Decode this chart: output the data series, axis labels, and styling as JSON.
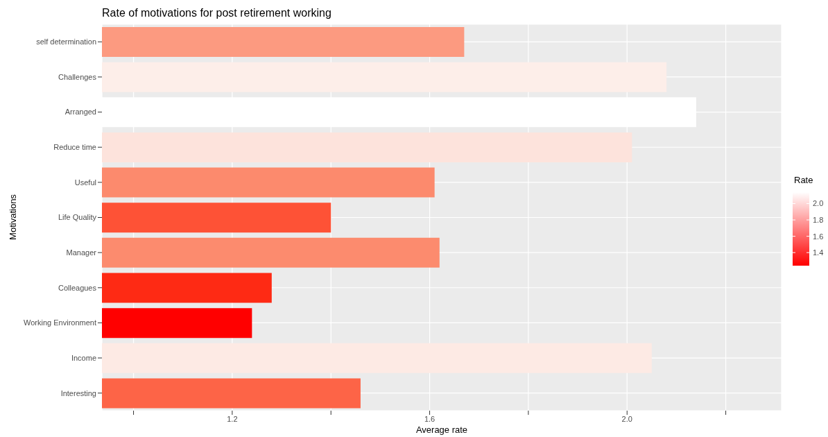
{
  "chart_data": {
    "type": "bar",
    "orientation": "horizontal",
    "title": "Rate of motivations for post retirement working",
    "xlabel": "Average rate",
    "ylabel": "Motivations",
    "clabel": "Rate",
    "categories": [
      "self determination",
      "Challenges",
      "Arranged",
      "Reduce time",
      "Useful",
      "Life Quality",
      "Manager",
      "Colleagues",
      "Working Environment",
      "Income",
      "Interesting"
    ],
    "values": [
      1.67,
      2.08,
      2.14,
      2.01,
      1.61,
      1.4,
      1.62,
      1.28,
      1.24,
      2.05,
      1.46
    ],
    "colors": [
      "#fc9a80",
      "#fdeee9",
      "#ffffff",
      "#fde3dc",
      "#fc8a6d",
      "#fe5236",
      "#fc8b6e",
      "#fe2a14",
      "#ff0000",
      "#fdeae4",
      "#fd6447"
    ],
    "xlim": [
      0.936,
      2.313
    ],
    "xticks": [
      {
        "value": 1.0,
        "label": null
      },
      {
        "value": 1.2,
        "label": "1.2"
      },
      {
        "value": 1.4,
        "label": null
      },
      {
        "value": 1.6,
        "label": "1.6"
      },
      {
        "value": 1.8,
        "label": null
      },
      {
        "value": 2.0,
        "label": "2.0"
      },
      {
        "value": 2.2,
        "label": null
      }
    ],
    "clim": [
      1.24,
      2.14
    ],
    "cticks": [
      {
        "value": 1.4,
        "label": "1.4"
      },
      {
        "value": 1.6,
        "label": "1.6"
      },
      {
        "value": 1.8,
        "label": "1.8"
      },
      {
        "value": 2.0,
        "label": "2.0"
      }
    ],
    "grid": true
  }
}
